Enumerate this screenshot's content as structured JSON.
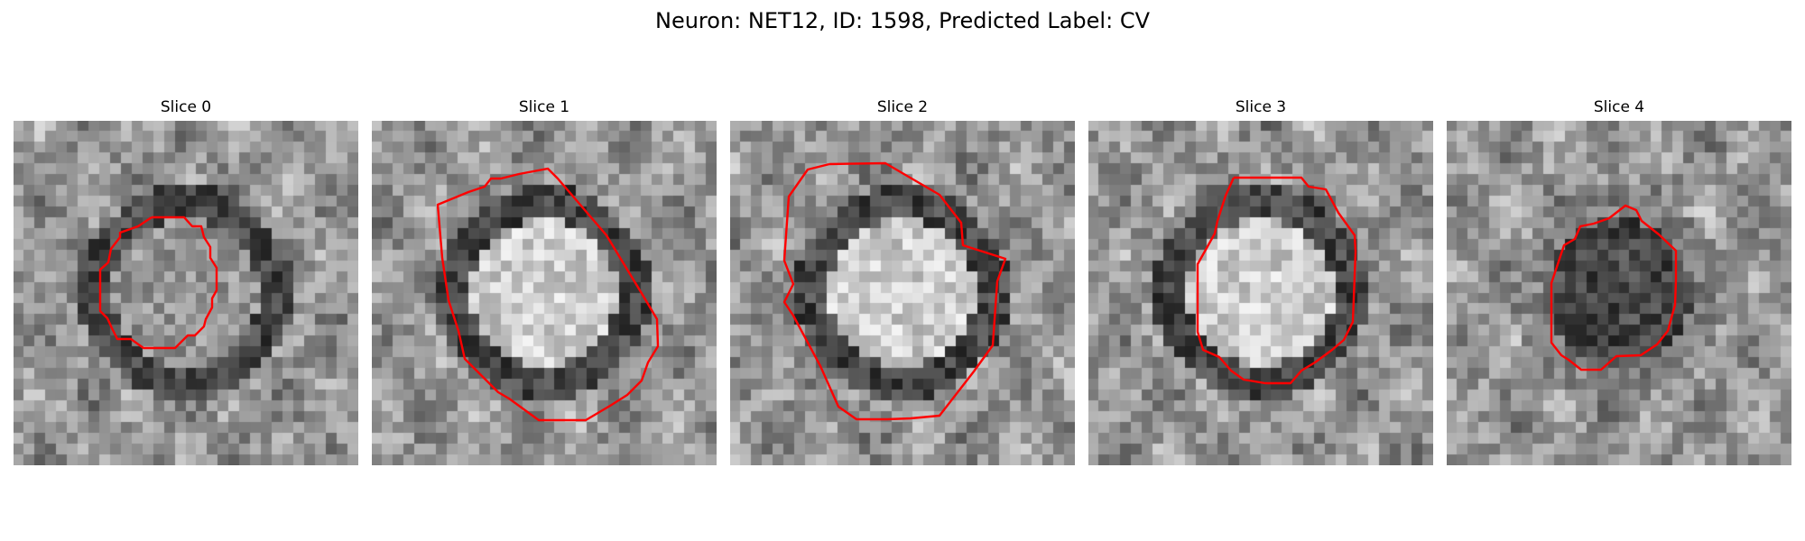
{
  "figure": {
    "title": "Neuron: NET12, ID: 1598, Predicted Label: CV",
    "contour_color": "#ff0000"
  },
  "slices": [
    {
      "label": "Slice 0",
      "center_brightness": "mixed",
      "ring_brightness": "dark"
    },
    {
      "label": "Slice 1",
      "center_brightness": "bright",
      "ring_brightness": "dark"
    },
    {
      "label": "Slice 2",
      "center_brightness": "bright",
      "ring_brightness": "dark"
    },
    {
      "label": "Slice 3",
      "center_brightness": "bright",
      "ring_brightness": "dark"
    },
    {
      "label": "Slice 4",
      "center_brightness": "dark",
      "ring_brightness": "medium"
    }
  ]
}
